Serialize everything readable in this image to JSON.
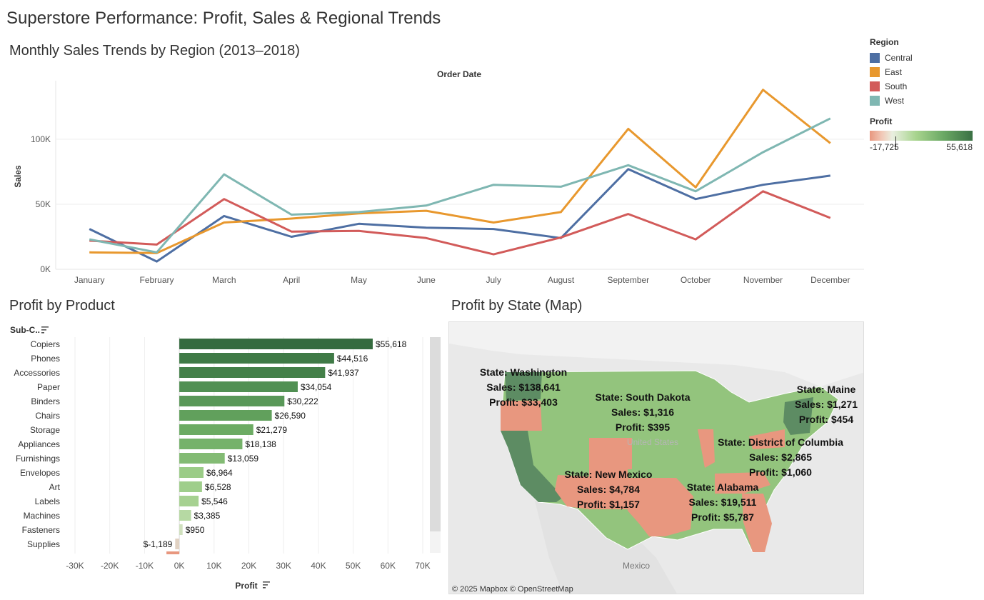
{
  "dashboard": {
    "title": "Superstore Performance: Profit, Sales & Regional Trends"
  },
  "legend": {
    "region_title": "Region",
    "regions": [
      {
        "name": "Central",
        "color": "#4e6fa3"
      },
      {
        "name": "East",
        "color": "#e8982e"
      },
      {
        "name": "South",
        "color": "#d25b5a"
      },
      {
        "name": "West",
        "color": "#7fb7b2"
      }
    ],
    "profit_title": "Profit",
    "profit_min": "-17,725",
    "profit_max": "55,618"
  },
  "chart_data": [
    {
      "type": "line",
      "title": "Monthly Sales Trends by Region (2013–2018)",
      "top_label": "Order Date",
      "ylabel": "Sales",
      "ylim": [
        0,
        145000
      ],
      "y_ticks": [
        {
          "value": 0,
          "label": "0K"
        },
        {
          "value": 50000,
          "label": "50K"
        },
        {
          "value": 100000,
          "label": "100K"
        }
      ],
      "categories": [
        "January",
        "February",
        "March",
        "April",
        "May",
        "June",
        "July",
        "August",
        "September",
        "October",
        "November",
        "December"
      ],
      "series": [
        {
          "name": "Central",
          "color": "#4e6fa3",
          "values": [
            31000,
            6000,
            41000,
            25000,
            35000,
            32000,
            31000,
            24000,
            77000,
            54000,
            65000,
            72000
          ]
        },
        {
          "name": "East",
          "color": "#e8982e",
          "values": [
            13000,
            12500,
            36000,
            39000,
            43000,
            45000,
            36000,
            44000,
            108000,
            63000,
            138000,
            97000
          ]
        },
        {
          "name": "South",
          "color": "#d25b5a",
          "values": [
            22000,
            19000,
            54000,
            29000,
            29500,
            24000,
            11500,
            24500,
            42500,
            23000,
            60000,
            39500
          ]
        },
        {
          "name": "West",
          "color": "#7fb7b2",
          "values": [
            23000,
            13000,
            73000,
            42000,
            44000,
            49000,
            65000,
            63500,
            80000,
            60000,
            90000,
            116000
          ]
        }
      ]
    },
    {
      "type": "bar",
      "title": "Profit by Product",
      "header_label": "Sub-C..",
      "xlabel": "Profit",
      "xlim": [
        -30000,
        70000
      ],
      "x_ticks": [
        {
          "value": -30000,
          "label": "-30K"
        },
        {
          "value": -20000,
          "label": "-20K"
        },
        {
          "value": -10000,
          "label": "-10K"
        },
        {
          "value": 0,
          "label": "0K"
        },
        {
          "value": 10000,
          "label": "10K"
        },
        {
          "value": 20000,
          "label": "20K"
        },
        {
          "value": 30000,
          "label": "30K"
        },
        {
          "value": 40000,
          "label": "40K"
        },
        {
          "value": 50000,
          "label": "50K"
        },
        {
          "value": 60000,
          "label": "60K"
        },
        {
          "value": 70000,
          "label": "70K"
        }
      ],
      "bars": [
        {
          "category": "Copiers",
          "value": 55618,
          "label": "$55,618",
          "color": "#356b3f"
        },
        {
          "category": "Phones",
          "value": 44516,
          "label": "$44,516",
          "color": "#3f7a46"
        },
        {
          "category": "Accessories",
          "value": 41937,
          "label": "$41,937",
          "color": "#448049"
        },
        {
          "category": "Paper",
          "value": 34054,
          "label": "$34,054",
          "color": "#519053"
        },
        {
          "category": "Binders",
          "value": 30222,
          "label": "$30,222",
          "color": "#599858"
        },
        {
          "category": "Chairs",
          "value": 26590,
          "label": "$26,590",
          "color": "#61a05c"
        },
        {
          "category": "Storage",
          "value": 21279,
          "label": "$21,279",
          "color": "#6cab63"
        },
        {
          "category": "Appliances",
          "value": 18138,
          "label": "$18,138",
          "color": "#75b26a"
        },
        {
          "category": "Furnishings",
          "value": 13059,
          "label": "$13,059",
          "color": "#83bb74"
        },
        {
          "category": "Envelopes",
          "value": 6964,
          "label": "$6,964",
          "color": "#9bcc87"
        },
        {
          "category": "Art",
          "value": 6528,
          "label": "$6,528",
          "color": "#9fce8b"
        },
        {
          "category": "Labels",
          "value": 5546,
          "label": "$5,546",
          "color": "#a6d191"
        },
        {
          "category": "Machines",
          "value": 3385,
          "label": "$3,385",
          "color": "#b6d9a3"
        },
        {
          "category": "Fasteners",
          "value": 950,
          "label": "$950",
          "color": "#cfe0bd"
        },
        {
          "category": "Supplies",
          "value": -1189,
          "label": "$-1,189",
          "color": "#e1d2c3"
        }
      ]
    }
  ],
  "map": {
    "title": "Profit by State (Map)",
    "attribution": "© 2025 Mapbox  © OpenStreetMap",
    "place_labels": {
      "country": "United States",
      "mexico": "Mexico"
    },
    "annotations": [
      {
        "state": "State: Washington",
        "sales": "Sales: $138,641",
        "profit": "Profit: $33,403"
      },
      {
        "state": "State: South Dakota",
        "sales": "Sales: $1,316",
        "profit": "Profit: $395"
      },
      {
        "state": "State: Maine",
        "sales": "Sales: $1,271",
        "profit": "Profit: $454"
      },
      {
        "state": "State: District of Columbia",
        "sales": "Sales: $2,865",
        "profit": "Profit: $1,060"
      },
      {
        "state": "State: New Mexico",
        "sales": "Sales: $4,784",
        "profit": "Profit: $1,157"
      },
      {
        "state": "State: Alabama",
        "sales": "Sales: $19,511",
        "profit": "Profit: $5,787"
      }
    ]
  }
}
